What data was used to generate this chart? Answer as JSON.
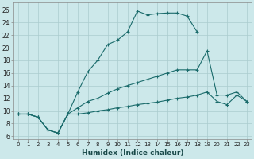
{
  "xlabel": "Humidex (Indice chaleur)",
  "bg_color": "#cce8ea",
  "grid_color": "#aaccce",
  "line_color": "#1a6b6b",
  "xlim": [
    -0.5,
    23.5
  ],
  "ylim": [
    5.5,
    27.2
  ],
  "xticks": [
    0,
    1,
    2,
    3,
    4,
    5,
    6,
    7,
    8,
    9,
    10,
    11,
    12,
    13,
    14,
    15,
    16,
    17,
    18,
    19,
    20,
    21,
    22,
    23
  ],
  "yticks": [
    6,
    8,
    10,
    12,
    14,
    16,
    18,
    20,
    22,
    24,
    26
  ],
  "line1_x": [
    0,
    1,
    2,
    3,
    4,
    5,
    6,
    7,
    8,
    9,
    10,
    11,
    12,
    13,
    14,
    15,
    16,
    17,
    18
  ],
  "line1_y": [
    9.5,
    9.5,
    9.0,
    7.0,
    6.5,
    9.5,
    13.0,
    16.2,
    18.0,
    20.5,
    21.2,
    22.5,
    25.8,
    25.2,
    25.4,
    25.5,
    25.5,
    25.0,
    22.5
  ],
  "line2_x": [
    0,
    1,
    2,
    3,
    4,
    5,
    6,
    7,
    8,
    9,
    10,
    11,
    12,
    13,
    14,
    15,
    16,
    17,
    18,
    19,
    20,
    21,
    22,
    23
  ],
  "line2_y": [
    9.5,
    9.5,
    9.0,
    7.0,
    6.5,
    9.5,
    10.5,
    11.5,
    12.0,
    12.8,
    13.5,
    14.0,
    14.5,
    15.0,
    15.5,
    16.0,
    16.5,
    16.5,
    16.5,
    19.5,
    12.5,
    12.5,
    13.0,
    11.5
  ],
  "line3_x": [
    0,
    1,
    2,
    3,
    4,
    5,
    6,
    7,
    8,
    9,
    10,
    11,
    12,
    13,
    14,
    15,
    16,
    17,
    18,
    19,
    20,
    21,
    22,
    23
  ],
  "line3_y": [
    9.5,
    9.5,
    9.0,
    7.0,
    6.5,
    9.5,
    9.5,
    9.7,
    10.0,
    10.2,
    10.5,
    10.7,
    11.0,
    11.2,
    11.4,
    11.7,
    12.0,
    12.2,
    12.5,
    13.0,
    11.5,
    11.0,
    12.5,
    11.5
  ]
}
